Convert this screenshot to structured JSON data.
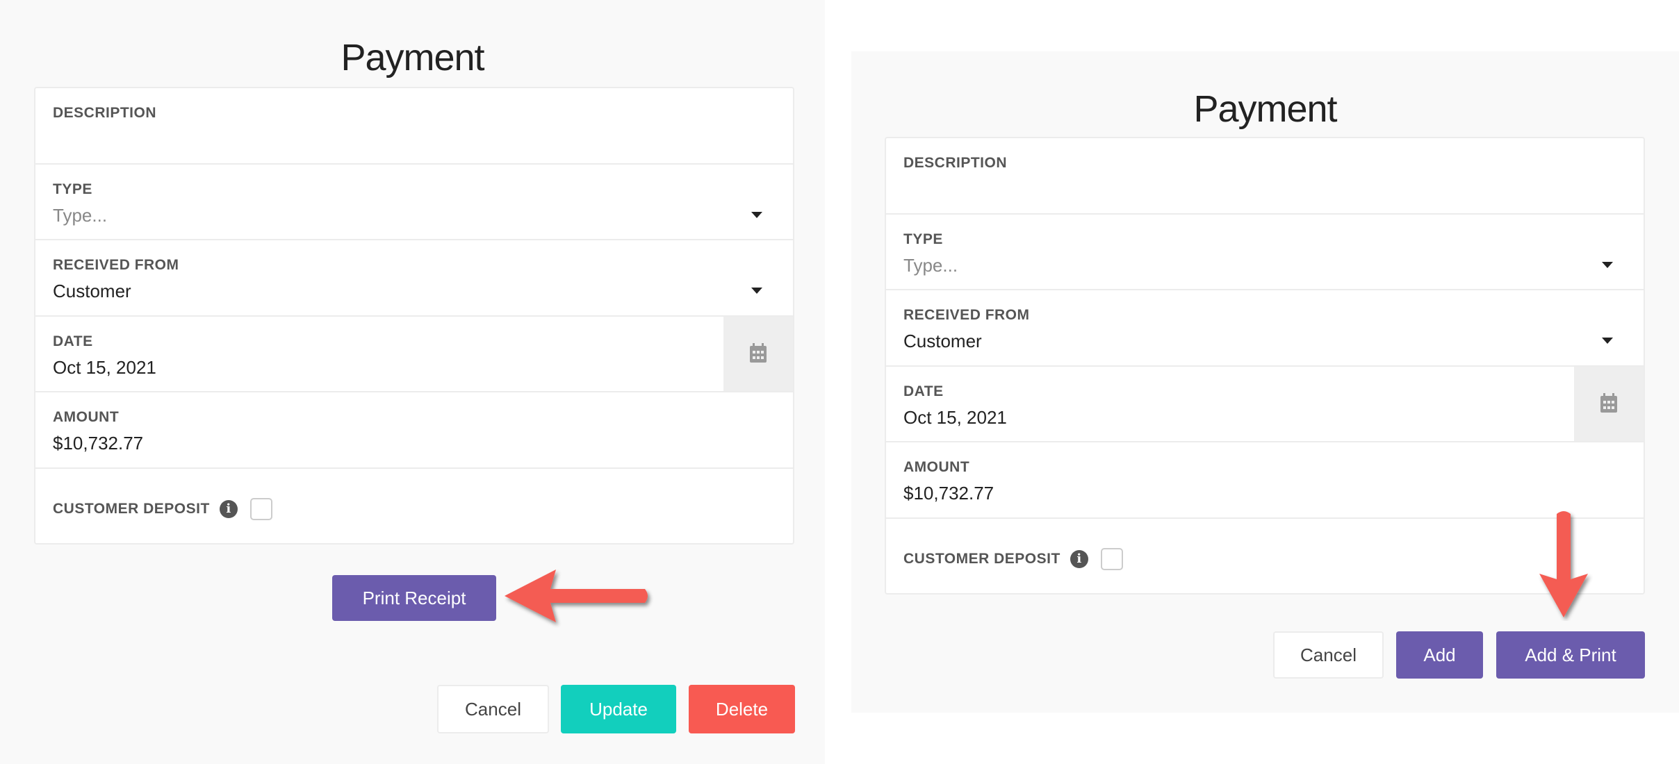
{
  "left": {
    "title": "Payment",
    "fields": {
      "description_label": "DESCRIPTION",
      "type_label": "TYPE",
      "type_placeholder": "Type...",
      "received_from_label": "RECEIVED FROM",
      "received_from_value": "Customer",
      "date_label": "DATE",
      "date_value": "Oct 15, 2021",
      "amount_label": "AMOUNT",
      "amount_value": "$10,732.77",
      "customer_deposit_label": "CUSTOMER DEPOSIT",
      "customer_deposit_checked": false
    },
    "print_receipt_label": "Print Receipt",
    "cancel_label": "Cancel",
    "update_label": "Update",
    "delete_label": "Delete"
  },
  "right": {
    "title": "Payment",
    "fields": {
      "description_label": "DESCRIPTION",
      "type_label": "TYPE",
      "type_placeholder": "Type...",
      "received_from_label": "RECEIVED FROM",
      "received_from_value": "Customer",
      "date_label": "DATE",
      "date_value": "Oct 15, 2021",
      "amount_label": "AMOUNT",
      "amount_value": "$10,732.77",
      "customer_deposit_label": "CUSTOMER DEPOSIT",
      "customer_deposit_checked": false
    },
    "cancel_label": "Cancel",
    "add_label": "Add",
    "add_print_label": "Add & Print"
  },
  "colors": {
    "purple": "#6b5cad",
    "teal": "#12cfbd",
    "red": "#f85a52",
    "arrow": "#f45b52"
  }
}
